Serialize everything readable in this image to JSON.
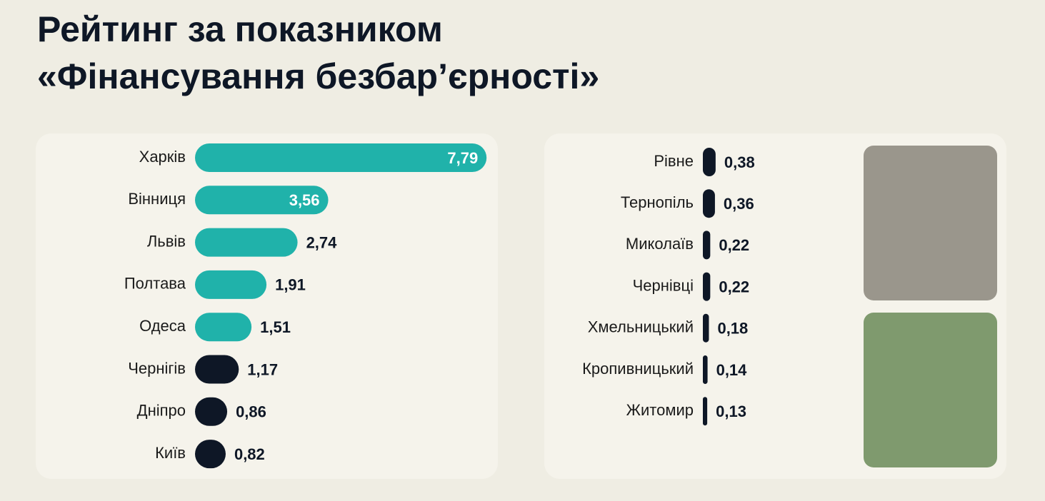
{
  "title": [
    "Рейтинг за показником",
    "«Фінансування безбар’єрності»"
  ],
  "chart_data": [
    {
      "type": "bar",
      "categories": [
        "Харків",
        "Вінниця",
        "Львів",
        "Полтава",
        "Одеса",
        "Чернігів",
        "Дніпро",
        "Київ"
      ],
      "values": [
        7.79,
        3.56,
        2.74,
        1.91,
        1.51,
        1.17,
        0.86,
        0.82
      ],
      "value_labels": [
        "7,79",
        "3,56",
        "2,74",
        "1,91",
        "1,51",
        "1,17",
        "0,86",
        "0,82"
      ],
      "colors": [
        "#20b2aa",
        "#20b2aa",
        "#20b2aa",
        "#20b2aa",
        "#20b2aa",
        "#0e1726",
        "#0e1726",
        "#0e1726"
      ]
    },
    {
      "type": "bar",
      "categories": [
        "Рівне",
        "Тернопіль",
        "Миколаїв",
        "Чернівці",
        "Хмельницький",
        "Кропивницький",
        "Житомир"
      ],
      "values": [
        0.38,
        0.36,
        0.22,
        0.22,
        0.18,
        0.14,
        0.13
      ],
      "value_labels": [
        "0,38",
        "0,36",
        "0,22",
        "0,22",
        "0,18",
        "0,14",
        "0,13"
      ],
      "colors": [
        "#0e1726",
        "#0e1726",
        "#0e1726",
        "#0e1726",
        "#0e1726",
        "#0e1726",
        "#0e1726"
      ]
    }
  ]
}
